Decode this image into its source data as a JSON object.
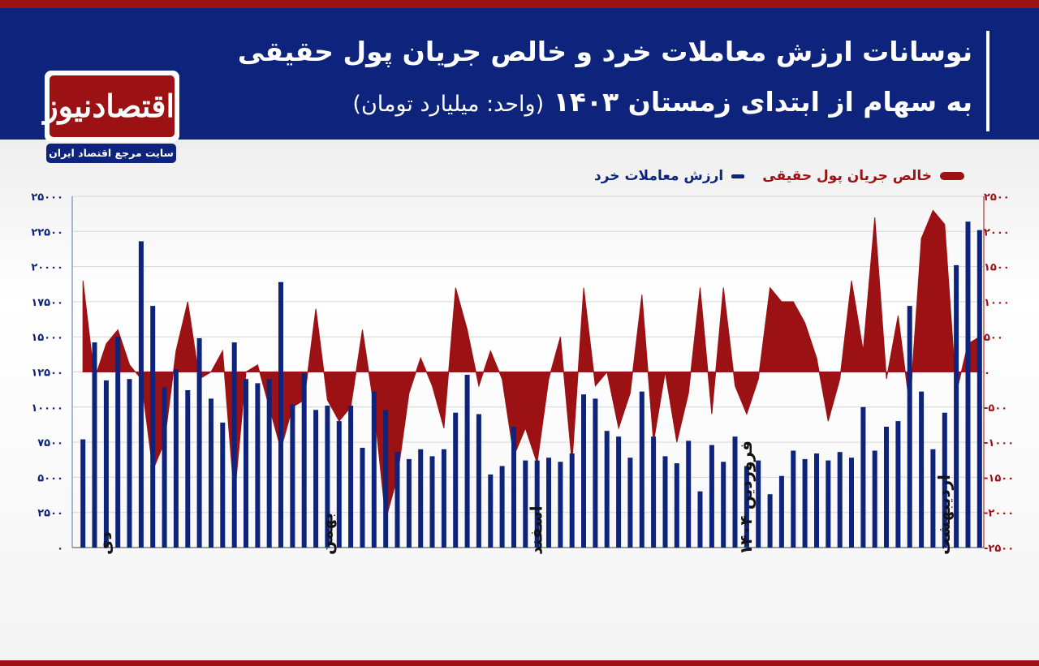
{
  "header": {
    "title_line1": "نوسانات ارزش معاملات خرد و خالص جریان پول حقیقی",
    "title_line2": "به سهام از ابتدای زمستان ۱۴۰۳",
    "unit_note": "(واحد: میلیارد تومان)"
  },
  "logo": {
    "name": "اقتصادنیوز",
    "tagline": "سایت مرجع اقتصاد ایران"
  },
  "colors": {
    "flow": "#9b1114",
    "retail": "#0d237c",
    "header_bg": "#0d237c"
  },
  "chart_data": {
    "type": "bar",
    "legend_position": "top-right",
    "grid": true,
    "left_axis": {
      "ylim": [
        0,
        25000
      ],
      "ticks": [
        0,
        2500,
        5000,
        7500,
        10000,
        12500,
        15000,
        17500,
        20000,
        22500,
        25000
      ],
      "tick_labels": [
        "۰",
        "۲۵۰۰",
        "۵۰۰۰",
        "۷۵۰۰",
        "۱۰۰۰۰",
        "۱۲۵۰۰",
        "۱۵۰۰۰",
        "۱۷۵۰۰",
        "۲۰۰۰۰",
        "۲۲۵۰۰",
        "۲۵۰۰۰"
      ]
    },
    "right_axis": {
      "ylim": [
        -2500,
        2500
      ],
      "ticks": [
        2500,
        2000,
        1500,
        1000,
        500,
        0,
        -500,
        -1000,
        -1500,
        -2000,
        -2500
      ],
      "tick_labels": [
        "۲۵۰۰",
        "۲۰۰۰",
        "۱۵۰۰",
        "۱۰۰۰",
        "۵۰۰",
        "۰",
        "-۵۰۰",
        "-۱۰۰۰",
        "-۱۵۰۰",
        "-۲۰۰۰",
        "-۲۵۰۰"
      ]
    },
    "month_labels": [
      {
        "label": "دی",
        "index": 2
      },
      {
        "label": "بهمن",
        "index": 21
      },
      {
        "label": "اسفند",
        "index": 39
      },
      {
        "label": "فروردین ۱۴۰۴",
        "index": 57
      },
      {
        "label": "اردیبهشت",
        "index": 74
      }
    ],
    "series": [
      {
        "name": "ارزش معاملات خرد",
        "type": "bar",
        "axis": "left",
        "values": [
          7700,
          14600,
          11900,
          15000,
          12000,
          21800,
          17200,
          11400,
          12700,
          11200,
          14900,
          10600,
          8900,
          14600,
          12000,
          11700,
          12000,
          18900,
          10200,
          12400,
          9800,
          10100,
          9000,
          10100,
          7100,
          11100,
          9800,
          6800,
          6300,
          7000,
          6500,
          7000,
          9600,
          12300,
          9500,
          5200,
          5800,
          8600,
          6200,
          6200,
          6400,
          6100,
          6700,
          10900,
          10600,
          8300,
          7900,
          6400,
          11100,
          7900,
          6500,
          6000,
          7600,
          4000,
          7300,
          6100,
          7900,
          5800,
          6200,
          3800,
          5100,
          6900,
          6300,
          6700,
          6200,
          6800,
          6400,
          10000,
          6900,
          8600,
          9000,
          17200,
          11100,
          7000,
          9600,
          20100,
          23200,
          22600
        ]
      },
      {
        "name": "خالص جریان پول حقیقی",
        "type": "area",
        "axis": "right",
        "values": [
          1300,
          -100,
          400,
          600,
          100,
          -100,
          -1400,
          -1000,
          300,
          1000,
          -100,
          0,
          300,
          -1800,
          0,
          100,
          -500,
          -1100,
          -500,
          -400,
          900,
          -400,
          -700,
          -500,
          600,
          -500,
          -2100,
          -1500,
          -300,
          200,
          -200,
          -800,
          1200,
          600,
          -200,
          300,
          -100,
          -1200,
          -800,
          -1300,
          -100,
          500,
          -1300,
          1200,
          -200,
          0,
          -800,
          -300,
          1100,
          -1000,
          0,
          -1000,
          -300,
          1200,
          -600,
          1200,
          -200,
          -600,
          -100,
          1200,
          1000,
          1000,
          700,
          200,
          -700,
          -100,
          1300,
          300,
          2200,
          -100,
          800,
          -500,
          1900,
          2300,
          2100,
          -300,
          400,
          500
        ]
      }
    ]
  }
}
